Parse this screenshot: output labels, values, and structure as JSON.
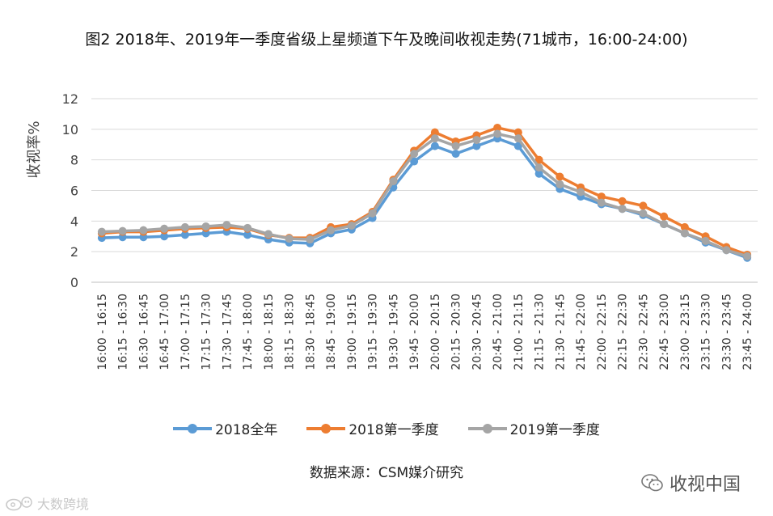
{
  "chart_data": {
    "type": "line",
    "title": "图2  2018年、2019年一季度省级上星频道下午及晚间收视走势(71城市，16:00-24:00)",
    "ylabel": "收视率%",
    "xlabel": "",
    "ylim": [
      0,
      12
    ],
    "yticks": [
      0,
      2,
      4,
      6,
      8,
      10,
      12
    ],
    "grid": true,
    "legend_position": "bottom",
    "categories": [
      "16:00 - 16:15",
      "16:15 - 16:30",
      "16:30 - 16:45",
      "16:45 - 17:00",
      "17:00 - 17:15",
      "17:15 - 17:30",
      "17:30 - 17:45",
      "17:45 - 18:00",
      "18:00 - 18:15",
      "18:15 - 18:30",
      "18:30 - 18:45",
      "18:45 - 19:00",
      "19:00 - 19:15",
      "19:15 - 19:30",
      "19:30 - 19:45",
      "19:45 - 20:00",
      "20:00 - 20:15",
      "20:15 - 20:30",
      "20:30 - 20:45",
      "20:45 - 21:00",
      "21:00 - 21:15",
      "21:15 - 21:30",
      "21:30 - 21:45",
      "21:45 - 22:00",
      "22:00 - 22:15",
      "22:15 - 22:30",
      "22:30 - 22:45",
      "22:45 - 23:00",
      "23:00 - 23:15",
      "23:15 - 23:30",
      "23:30 - 23:45",
      "23:45 - 24:00"
    ],
    "series": [
      {
        "name": "2018全年",
        "color": "#5b9bd5",
        "values": [
          2.9,
          2.95,
          2.95,
          3.0,
          3.1,
          3.2,
          3.3,
          3.1,
          2.8,
          2.6,
          2.55,
          3.2,
          3.45,
          4.2,
          6.2,
          7.9,
          8.9,
          8.4,
          8.9,
          9.4,
          8.9,
          7.1,
          6.1,
          5.6,
          5.1,
          4.8,
          4.4,
          3.8,
          3.2,
          2.6,
          2.1,
          1.6
        ]
      },
      {
        "name": "2018第一季度",
        "color": "#ed7d31",
        "values": [
          3.2,
          3.3,
          3.3,
          3.4,
          3.5,
          3.55,
          3.6,
          3.5,
          3.1,
          2.9,
          2.9,
          3.6,
          3.8,
          4.6,
          6.7,
          8.6,
          9.8,
          9.2,
          9.6,
          10.1,
          9.8,
          8.0,
          6.9,
          6.2,
          5.6,
          5.3,
          5.0,
          4.3,
          3.6,
          3.0,
          2.3,
          1.8
        ]
      },
      {
        "name": "2019第一季度",
        "color": "#a5a5a5",
        "values": [
          3.3,
          3.35,
          3.4,
          3.5,
          3.6,
          3.65,
          3.75,
          3.55,
          3.15,
          2.85,
          2.8,
          3.4,
          3.7,
          4.5,
          6.6,
          8.4,
          9.4,
          8.9,
          9.3,
          9.7,
          9.4,
          7.5,
          6.4,
          5.9,
          5.2,
          4.8,
          4.5,
          3.8,
          3.2,
          2.7,
          2.1,
          1.7
        ]
      }
    ]
  },
  "source_text": "数据来源：CSM媒介研究",
  "brand_right": {
    "text": "收视中国",
    "icon": "wechat-icon"
  },
  "brand_left": {
    "text": "大数跨境",
    "icon": "weibo-icon"
  }
}
